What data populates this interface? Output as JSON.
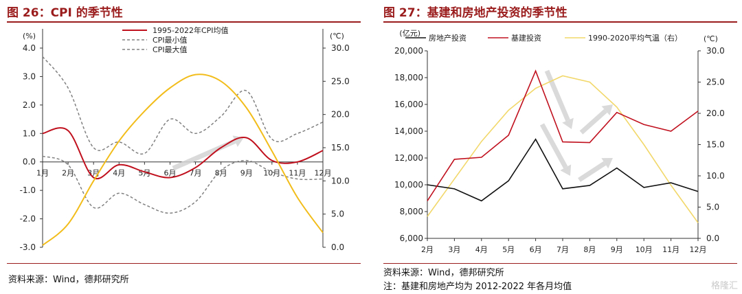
{
  "chart_data": [
    {
      "type": "line",
      "title": "图 26：CPI 的季节性",
      "categories": [
        "1月",
        "2月",
        "3月",
        "4月",
        "5月",
        "6月",
        "7月",
        "8月",
        "9月",
        "10月",
        "11月",
        "12月"
      ],
      "left_unit": "(%)",
      "right_unit": "(℃)",
      "ylim_left": [
        -3.0,
        4.0
      ],
      "ylim_right": [
        0.0,
        30.0
      ],
      "yticks_left": [
        "4.0",
        "3.0",
        "2.0",
        "1.0",
        "0.0",
        "-1.0",
        "-2.0",
        "-3.0"
      ],
      "yticks_right": [
        "30.0",
        "25.0",
        "20.0",
        "15.0",
        "10.0",
        "5.0",
        "0.0"
      ],
      "series": [
        {
          "name": "1995-2022年CPI均值",
          "axis": "left",
          "color": "#c0101e",
          "values": [
            1.0,
            1.1,
            -0.55,
            -0.1,
            -0.35,
            -0.55,
            -0.2,
            0.5,
            0.85,
            0.05,
            0.0,
            0.4
          ]
        },
        {
          "name": "CPI最小值",
          "axis": "left",
          "color": "#808080",
          "dash": true,
          "values": [
            0.2,
            -0.1,
            -1.6,
            -1.1,
            -1.5,
            -1.8,
            -1.4,
            -0.3,
            0.05,
            -0.35,
            -0.6,
            -0.6
          ]
        },
        {
          "name": "CPI最大值",
          "axis": "left",
          "color": "#808080",
          "dash": true,
          "values": [
            3.7,
            2.6,
            0.5,
            0.7,
            0.3,
            1.5,
            1.0,
            1.6,
            2.5,
            0.8,
            1.0,
            1.4
          ]
        },
        {
          "name": "",
          "axis": "right",
          "color": "#f2bd1a",
          "values": [
            0.3,
            3.5,
            10.0,
            16.0,
            20.5,
            24.0,
            26.0,
            25.0,
            21.0,
            14.5,
            7.5,
            2.2
          ]
        }
      ],
      "source": "资料来源：Wind，德邦研究所"
    },
    {
      "type": "line",
      "title": "图 27：基建和房地产投资的季节性",
      "categories": [
        "2月",
        "3月",
        "4月",
        "5月",
        "6月",
        "7月",
        "8月",
        "9月",
        "10月",
        "11月",
        "12月"
      ],
      "left_unit": "(亿元)",
      "right_unit": "(℃)",
      "ylim_left": [
        6000,
        20000
      ],
      "ylim_right": [
        0.0,
        30.0
      ],
      "yticks_left": [
        "20,000",
        "18,000",
        "16,000",
        "14,000",
        "12,000",
        "10,000",
        "8,000",
        "6,000"
      ],
      "yticks_right": [
        "30.0",
        "25.0",
        "20.0",
        "15.0",
        "10.0",
        "5.0",
        "0.0"
      ],
      "series": [
        {
          "name": "房地产投资",
          "axis": "left",
          "color": "#111111",
          "values": [
            10000,
            9700,
            8800,
            10300,
            13400,
            9700,
            9950,
            11250,
            9800,
            10150,
            9500
          ]
        },
        {
          "name": "基建投资",
          "axis": "left",
          "color": "#c0101e",
          "values": [
            8800,
            11900,
            12050,
            13700,
            18500,
            13200,
            13150,
            15400,
            14500,
            14000,
            15500
          ]
        },
        {
          "name": "1990-2020平均气温（右）",
          "axis": "right",
          "color": "#f2d86a",
          "values": [
            3.5,
            9.5,
            15.5,
            20.5,
            24.0,
            26.0,
            25.0,
            21.0,
            15.0,
            8.5,
            2.5
          ]
        }
      ],
      "source": "资料来源：Wind，德邦研究所",
      "note": "注：基建和房地产均为 2012-2022 年各月均值"
    }
  ],
  "watermark": "格隆汇"
}
